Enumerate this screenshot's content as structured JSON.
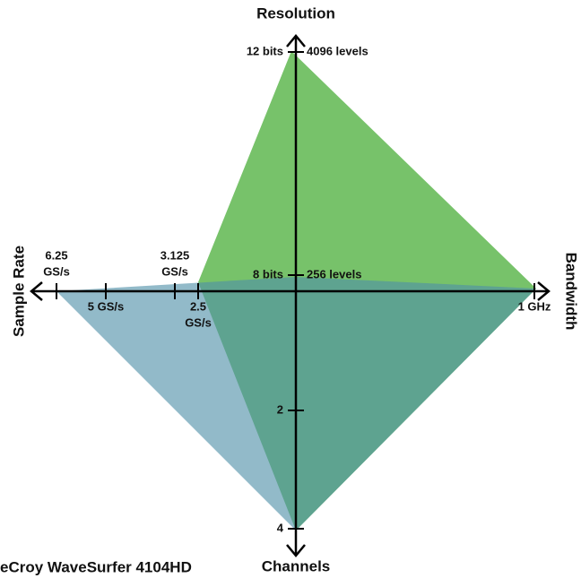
{
  "axes": {
    "top": {
      "label": "Resolution"
    },
    "bottom": {
      "label": "Channels"
    },
    "left": {
      "label": "Sample Rate"
    },
    "right": {
      "label": "Bandwidth"
    }
  },
  "ticks": {
    "resolution_high": {
      "left": "12 bits",
      "right": "4096 levels"
    },
    "resolution_low": {
      "left": "8 bits",
      "right": "256 levels"
    },
    "channels_mid": "2",
    "channels_high": "4",
    "rate_a": [
      "6.25",
      "GS/s"
    ],
    "rate_b": "5 GS/s",
    "rate_c": [
      "3.125",
      "GS/s"
    ],
    "rate_d": [
      "2.5",
      "GS/s"
    ],
    "bandwidth": "1 GHz"
  },
  "legend": {
    "blue": "eCroy WaveSurfer 4104HD"
  }
}
